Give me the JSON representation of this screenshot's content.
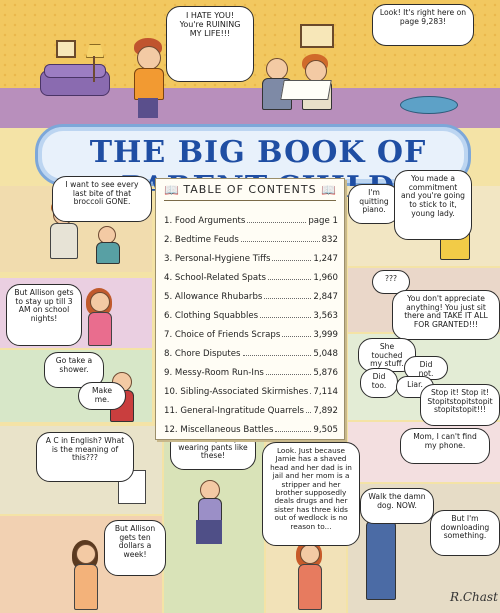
{
  "title": "THE BIG BOOK OF PARENT-CHILD FIGHTS",
  "toc": {
    "heading": "TABLE OF CONTENTS",
    "entries": [
      {
        "label": "1. Food Arguments",
        "page": "page 1"
      },
      {
        "label": "2. Bedtime Feuds",
        "page": "832"
      },
      {
        "label": "3. Personal-Hygiene Tiffs",
        "page": "1,247"
      },
      {
        "label": "4. School-Related Spats",
        "page": "1,960"
      },
      {
        "label": "5. Allowance Rhubarbs",
        "page": "2,847"
      },
      {
        "label": "6. Clothing Squabbles",
        "page": "3,563"
      },
      {
        "label": "7. Choice of Friends Scraps",
        "page": "3,999"
      },
      {
        "label": "8. Chore Disputes",
        "page": "5,048"
      },
      {
        "label": "9. Messy-Room Run-Ins",
        "page": "5,876"
      },
      {
        "label": "10. Sibling-Associated Skirmishes",
        "page": "7,114"
      },
      {
        "label": "11. General-Ingratitude Quarrels",
        "page": "7,892"
      },
      {
        "label": "12. Miscellaneous Battles",
        "page": "9,505"
      }
    ]
  },
  "bubbles": {
    "hate": "I HATE YOU! You're RUINING MY LIFE!!!",
    "look": "Look! It's right here on page 9,283!",
    "broccoli": "I want to see every last bite of that broccoli GONE.",
    "quitting": "I'm quitting piano.",
    "commitment": "You made a commitment and you're going to stick to it, young lady.",
    "allison_bed": "But Allison gets to stay up till 3 AM on school nights!",
    "question": "???",
    "appreciate": "You don't appreciate anything! You just sit there and TAKE IT ALL FOR GRANTED!!!",
    "shower": "Go take a shower.",
    "makeme": "Make me.",
    "touched": "She touched my stuff.",
    "didnot": "Did not.",
    "didtoo": "Did too.",
    "liar": "Liar.",
    "stopit": "Stop it! Stop it! Stopitstopitstopit stopitstopit!!!",
    "cinenglish": "A C in English? What is the meaning of this???",
    "wearing": "Ma, everybody's wearing pants like these!",
    "jamie": "Look. Just because Jamie has a shaved head and her dad is in jail and her mom is a stripper and her brother supposedly deals drugs and her sister has three kids out of wedlock is no reason to...",
    "phone": "Mom, I can't find my phone.",
    "allison_dollars": "But Allison gets ten dollars a week!",
    "walkdog": "Walk the damn dog. NOW.",
    "downloading": "But I'm downloading something."
  },
  "signature": "R.Chast",
  "colors": {
    "wall": "#f2c860",
    "banner_text": "#1f4ea3",
    "banner_border": "#7da7d9",
    "page_bg": "#f4e3a6"
  }
}
